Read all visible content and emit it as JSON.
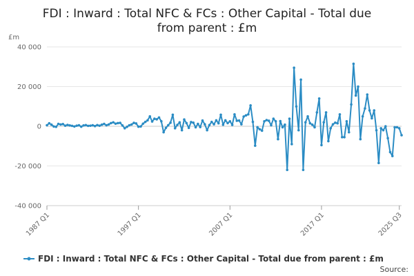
{
  "chart_data": {
    "type": "line",
    "title_line1": "FDI : Inward : Total NFC & FCs : Other Capital - Total due",
    "title_line2": "from parent : £m",
    "unit_label": "£m",
    "ylim": [
      -40000,
      40000
    ],
    "yticks": [
      40000,
      20000,
      0,
      -20000,
      -40000
    ],
    "ytick_labels": [
      "40 000",
      "20 000",
      "0",
      "-20 000",
      "-40 000"
    ],
    "xticks": [
      "1987 Q1",
      "1997 Q1",
      "2007 Q1",
      "2017 Q1",
      "2025 Q3"
    ],
    "xtick_index": [
      0,
      40,
      80,
      120,
      154
    ],
    "grid": "horizontal",
    "legend_position": "bottom",
    "series": [
      {
        "name": "FDI : Inward : Total NFC & FCs : Other Capital - Total due from parent : £m",
        "color": "#2b8cc4",
        "values": [
          500,
          1500,
          800,
          -100,
          -300,
          1200,
          900,
          1100,
          300,
          700,
          400,
          200,
          -100,
          300,
          500,
          -200,
          400,
          600,
          200,
          300,
          500,
          100,
          600,
          300,
          800,
          1200,
          500,
          900,
          1600,
          2000,
          1300,
          1600,
          1700,
          400,
          -1000,
          -300,
          500,
          900,
          1700,
          1400,
          -200,
          -100,
          1300,
          2200,
          3000,
          5000,
          2400,
          3800,
          3500,
          4400,
          2500,
          -3000,
          -800,
          500,
          1800,
          5800,
          -1000,
          700,
          2000,
          -2000,
          3400,
          1600,
          -800,
          2100,
          1800,
          -500,
          1200,
          -400,
          2900,
          1000,
          -2000,
          600,
          2200,
          1000,
          3000,
          1500,
          5800,
          800,
          3000,
          1600,
          2500,
          700,
          6000,
          2800,
          2900,
          1000,
          4900,
          5500,
          6000,
          10500,
          2200,
          -9800,
          -500,
          -1500,
          -2200,
          2500,
          3100,
          2800,
          500,
          3800,
          2500,
          -6500,
          2600,
          -500,
          800,
          -22000,
          3800,
          -9000,
          29500,
          10000,
          -2000,
          23500,
          -22000,
          2000,
          5000,
          1500,
          800,
          -500,
          7000,
          14000,
          -9500,
          2000,
          7000,
          -7500,
          -1000,
          1000,
          1800,
          1500,
          6000,
          -5500,
          -5500,
          2500,
          -3000,
          11000,
          31500,
          15500,
          20000,
          -6500,
          5000,
          9000,
          16000,
          8000,
          4000,
          8000,
          -2000,
          -18500,
          -1000,
          -2000,
          0,
          -6000,
          -13000,
          -15000,
          -500,
          -500,
          -1000,
          -4500
        ]
      }
    ],
    "source_label": "Source:"
  }
}
